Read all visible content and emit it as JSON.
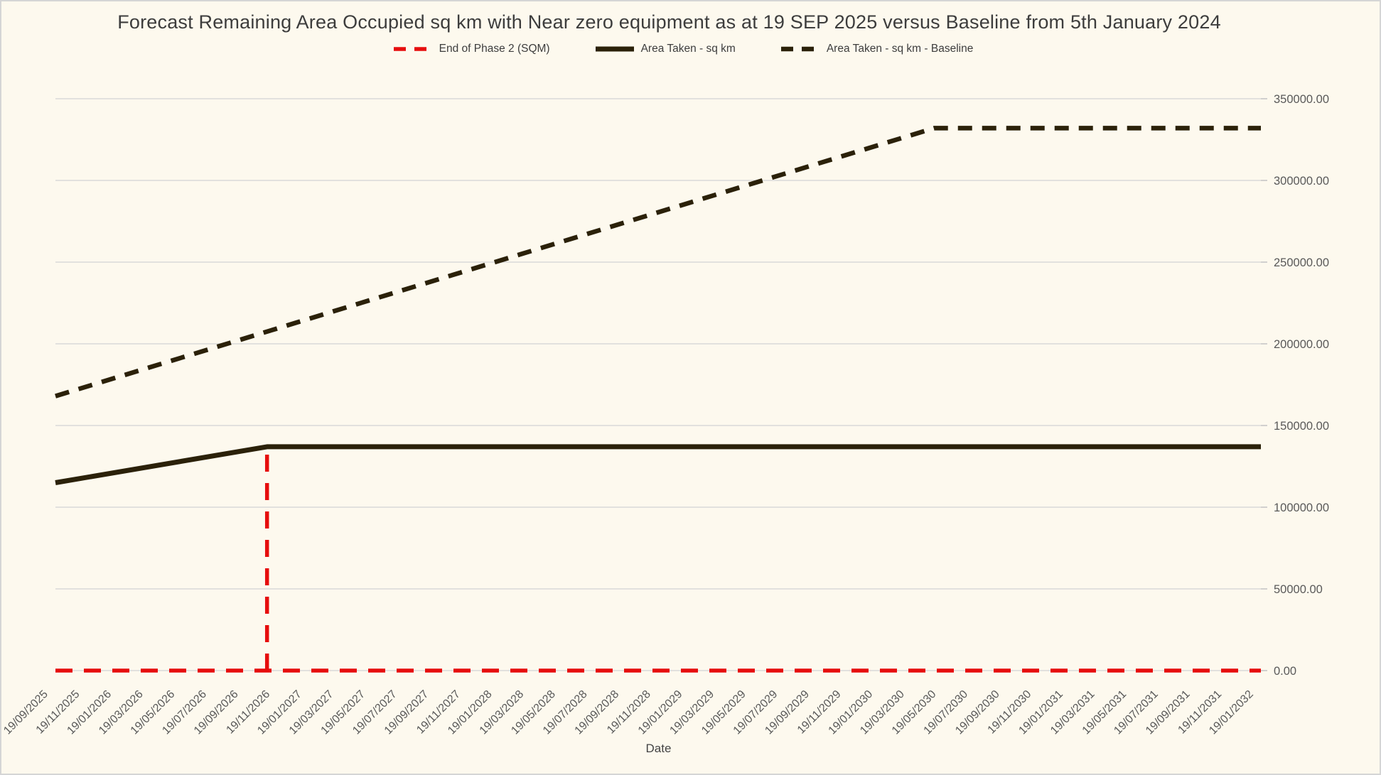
{
  "window": {
    "background_color": "#fdf9ee",
    "border_color": "#d5d5d5",
    "gridline_color": "#d9d9d9",
    "axis_text_color": "#595959",
    "title_text_color": "#3d3d3d"
  },
  "chart_data": {
    "type": "line",
    "title": "Forecast Remaining Area Occupied sq km with Near zero equipment as at 19 SEP 2025 versus Baseline from 5th January 2024",
    "xlabel": "Date",
    "legend_position": "top",
    "grid": true,
    "ylim": [
      0,
      350000
    ],
    "y_ticks": [
      {
        "value": 0,
        "label": "0.00"
      },
      {
        "value": 50000,
        "label": "50000.00"
      },
      {
        "value": 100000,
        "label": "100000.00"
      },
      {
        "value": 150000,
        "label": "150000.00"
      },
      {
        "value": 200000,
        "label": "200000.00"
      },
      {
        "value": 250000,
        "label": "250000.00"
      },
      {
        "value": 300000,
        "label": "300000.00"
      },
      {
        "value": 350000,
        "label": "350000.00"
      }
    ],
    "x_tick_labels": [
      "19/09/2025",
      "19/11/2025",
      "19/01/2026",
      "19/03/2026",
      "19/05/2026",
      "19/07/2026",
      "19/09/2026",
      "19/11/2026",
      "19/01/2027",
      "19/03/2027",
      "19/05/2027",
      "19/07/2027",
      "19/09/2027",
      "19/11/2027",
      "19/01/2028",
      "19/03/2028",
      "19/05/2028",
      "19/07/2028",
      "19/09/2028",
      "19/11/2028",
      "19/01/2029",
      "19/03/2029",
      "19/05/2029",
      "19/07/2029",
      "19/09/2029",
      "19/11/2029",
      "19/01/2030",
      "19/03/2030",
      "19/05/2030",
      "19/07/2030",
      "19/09/2030",
      "19/11/2030",
      "19/01/2031",
      "19/03/2031",
      "19/05/2031",
      "19/07/2031",
      "19/09/2031",
      "19/11/2031",
      "19/01/2032"
    ],
    "series": [
      {
        "name": "End of Phase 2 (SQM)",
        "color": "#e60d0d",
        "style": "dashed",
        "width": 5.5,
        "segments": [
          {
            "points": [
              [
                0,
                0
              ],
              [
                38,
                0
              ]
            ]
          },
          {
            "points": [
              [
                6.67,
                0
              ],
              [
                6.67,
                137000
              ]
            ]
          }
        ]
      },
      {
        "name": "Area Taken - sq km",
        "color": "#2b2109",
        "style": "solid",
        "width": 7,
        "segments": [
          {
            "points": [
              [
                0,
                115000
              ],
              [
                6.67,
                137000
              ],
              [
                38,
                137000
              ]
            ]
          }
        ]
      },
      {
        "name": "Area Taken - sq km - Baseline",
        "color": "#2b2109",
        "style": "dashed",
        "width": 6.5,
        "segments": [
          {
            "points": [
              [
                0,
                168000
              ],
              [
                27.7,
                332000
              ],
              [
                38,
                332000
              ]
            ]
          }
        ]
      }
    ]
  }
}
